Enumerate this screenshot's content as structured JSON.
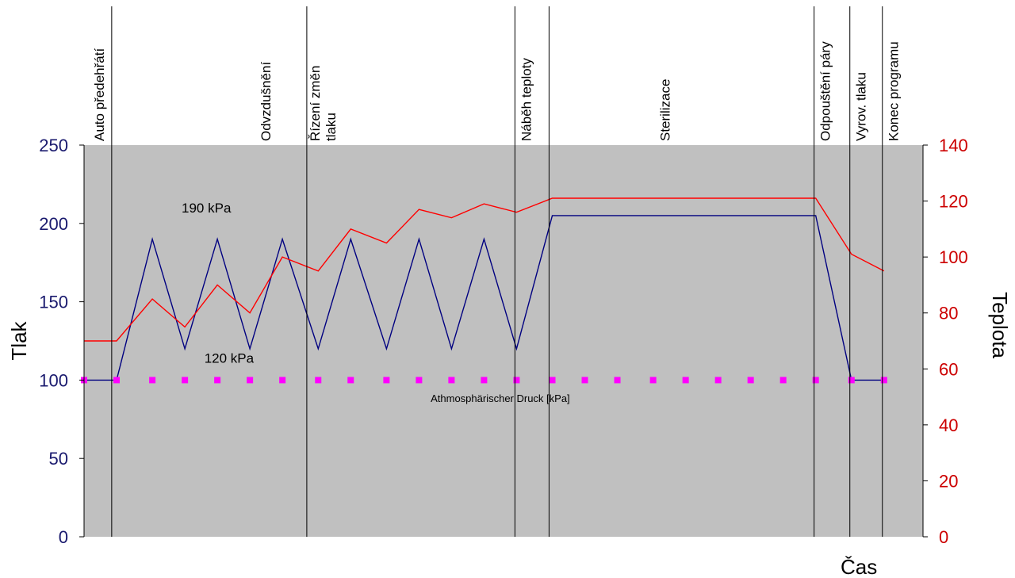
{
  "colors": {
    "plot_background": "#c0c0c0",
    "pressure": "#000080",
    "temperature": "#ff0000",
    "atmospheric": "#ff00ff",
    "left_axis_text": "#1a1a6e",
    "right_axis_text": "#cc0000"
  },
  "chart_data": {
    "type": "line",
    "xlabel": "Čas",
    "ylabel_left": "Tlak",
    "ylabel_right": "Teplota",
    "ylim_left": [
      0,
      250
    ],
    "ylim_right": [
      0,
      140
    ],
    "yticks_left": [
      0,
      50,
      100,
      150,
      200,
      250
    ],
    "yticks_right": [
      0,
      20,
      40,
      60,
      80,
      100,
      120,
      140
    ],
    "grid": false,
    "legend": "none",
    "phases": [
      {
        "label": "Auto předehřátí",
        "start": 0,
        "end": 8.5
      },
      {
        "label": "Odvzdušnění",
        "start": 8.5,
        "end": 68.5
      },
      {
        "label": "Řízení změn tlaku",
        "start": 68.5,
        "end": 132.5
      },
      {
        "label": "Náběh teploty",
        "start": 132.5,
        "end": 143
      },
      {
        "label": "Sterilizace",
        "start": 143,
        "end": 224.5
      },
      {
        "label": "Odpouštění páry",
        "start": 224.5,
        "end": 235.5
      },
      {
        "label": "Vyrov. tlaku",
        "start": 235.5,
        "end": 245.5
      },
      {
        "label": "Konec programu",
        "start": 245.5,
        "end": 258
      }
    ],
    "series": [
      {
        "axis": "left",
        "x": [
          0,
          10,
          21,
          31,
          41,
          51,
          61,
          72,
          82,
          93,
          103,
          113,
          123,
          133,
          144,
          225,
          236,
          246
        ],
        "y": [
          100,
          100,
          190,
          120,
          190,
          120,
          190,
          120,
          190,
          120,
          190,
          120,
          190,
          120,
          205,
          205,
          100,
          100
        ]
      },
      {
        "axis": "right",
        "x": [
          0,
          10,
          21,
          31,
          41,
          51,
          61,
          72,
          82,
          93,
          103,
          113,
          123,
          133,
          144,
          225,
          236,
          246
        ],
        "y": [
          70,
          70,
          85,
          75,
          90,
          80,
          100,
          95,
          110,
          105,
          117,
          114,
          119,
          116,
          121,
          121,
          101,
          95
        ]
      },
      {
        "name": "Athmosphärischer Druck [kPa]",
        "axis": "left",
        "style": "dotted",
        "x": [
          0,
          10,
          21,
          31,
          41,
          51,
          61,
          72,
          82,
          93,
          103,
          113,
          123,
          133,
          144,
          154,
          164,
          175,
          185,
          195,
          205,
          215,
          225,
          236,
          246
        ],
        "y": [
          100,
          100,
          100,
          100,
          100,
          100,
          100,
          100,
          100,
          100,
          100,
          100,
          100,
          100,
          100,
          100,
          100,
          100,
          100,
          100,
          100,
          100,
          100,
          100,
          100
        ]
      }
    ],
    "annotations": [
      {
        "text": "190 kPa",
        "x": 30,
        "y": 207
      },
      {
        "text": "120 kPa",
        "x": 37,
        "y": 111
      },
      {
        "text": "Athmosphärischer Druck [kPa]",
        "x": 128,
        "y": 86
      }
    ]
  }
}
